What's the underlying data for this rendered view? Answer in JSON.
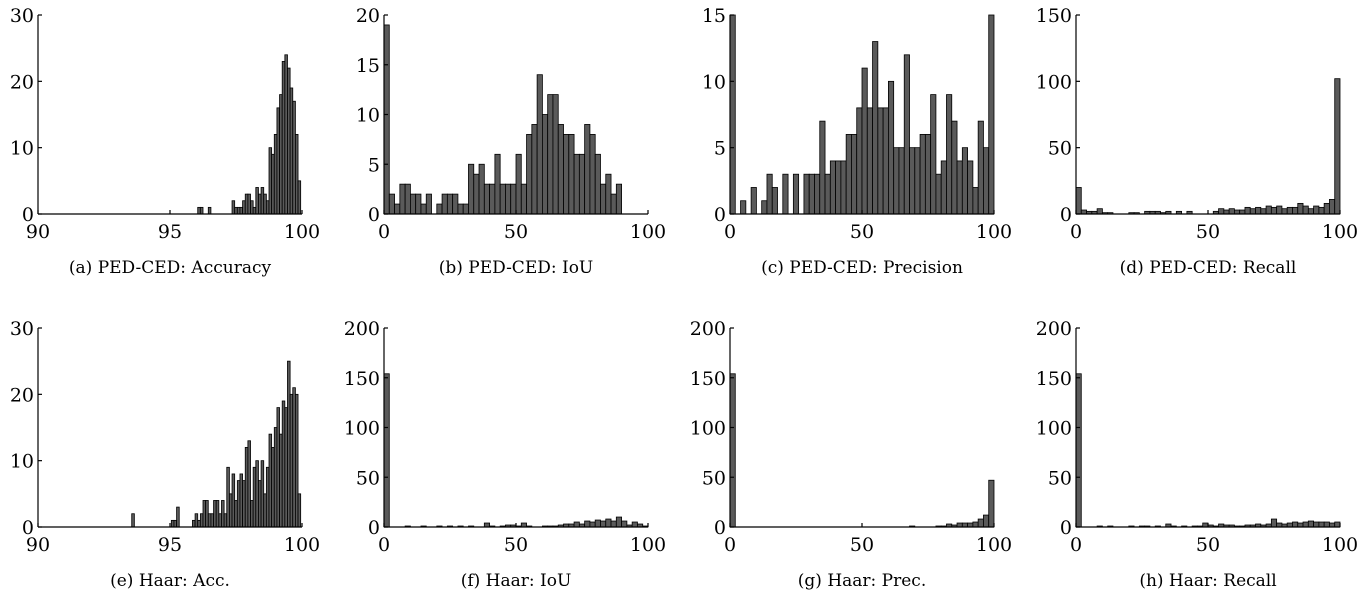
{
  "chart_data": [
    {
      "id": "a",
      "type": "bar",
      "subtype": "histogram",
      "caption": "(a) PED-CED: Accuracy",
      "xlim": [
        90,
        100
      ],
      "ylim": [
        0,
        30
      ],
      "xticks": [
        90,
        95,
        100
      ],
      "yticks": [
        0,
        10,
        20,
        30
      ],
      "bin_width": 0.1,
      "bins": [
        [
          96.1,
          1
        ],
        [
          96.2,
          1
        ],
        [
          96.5,
          1
        ],
        [
          97.4,
          2
        ],
        [
          97.5,
          1
        ],
        [
          97.6,
          1
        ],
        [
          97.7,
          1
        ],
        [
          97.8,
          2
        ],
        [
          97.9,
          3
        ],
        [
          98.0,
          3
        ],
        [
          98.1,
          2
        ],
        [
          98.2,
          1
        ],
        [
          98.3,
          4
        ],
        [
          98.4,
          3
        ],
        [
          98.5,
          4
        ],
        [
          98.6,
          3
        ],
        [
          98.7,
          2
        ],
        [
          98.8,
          10
        ],
        [
          98.9,
          9
        ],
        [
          99.0,
          12
        ],
        [
          99.1,
          16
        ],
        [
          99.2,
          18
        ],
        [
          99.3,
          23
        ],
        [
          99.4,
          24
        ],
        [
          99.5,
          22
        ],
        [
          99.6,
          19
        ],
        [
          99.7,
          17
        ],
        [
          99.8,
          12
        ],
        [
          99.9,
          5
        ]
      ]
    },
    {
      "id": "b",
      "type": "bar",
      "subtype": "histogram",
      "caption": "(b) PED-CED: IoU",
      "xlim": [
        0,
        100
      ],
      "ylim": [
        0,
        20
      ],
      "xticks": [
        0,
        50,
        100
      ],
      "yticks": [
        0,
        5,
        10,
        15,
        20
      ],
      "bin_width": 2,
      "bins": [
        [
          1,
          19
        ],
        [
          3,
          2
        ],
        [
          5,
          1
        ],
        [
          7,
          3
        ],
        [
          9,
          3
        ],
        [
          11,
          2
        ],
        [
          13,
          2
        ],
        [
          15,
          1
        ],
        [
          17,
          2
        ],
        [
          19,
          0
        ],
        [
          21,
          1
        ],
        [
          23,
          2
        ],
        [
          25,
          2
        ],
        [
          27,
          2
        ],
        [
          29,
          1
        ],
        [
          31,
          1
        ],
        [
          33,
          5
        ],
        [
          35,
          4
        ],
        [
          37,
          5
        ],
        [
          39,
          3
        ],
        [
          41,
          3
        ],
        [
          43,
          6
        ],
        [
          45,
          3
        ],
        [
          47,
          3
        ],
        [
          49,
          3
        ],
        [
          51,
          6
        ],
        [
          53,
          3
        ],
        [
          55,
          8
        ],
        [
          57,
          9
        ],
        [
          59,
          14
        ],
        [
          61,
          10
        ],
        [
          63,
          12
        ],
        [
          65,
          12
        ],
        [
          67,
          9
        ],
        [
          69,
          8
        ],
        [
          71,
          8
        ],
        [
          73,
          6
        ],
        [
          75,
          6
        ],
        [
          77,
          9
        ],
        [
          79,
          8
        ],
        [
          81,
          6
        ],
        [
          83,
          3
        ],
        [
          85,
          4
        ],
        [
          87,
          2
        ],
        [
          89,
          3
        ]
      ]
    },
    {
      "id": "c",
      "type": "bar",
      "subtype": "histogram",
      "caption": "(c) PED-CED: Precision",
      "xlim": [
        0,
        100
      ],
      "ylim": [
        0,
        15
      ],
      "xticks": [
        0,
        50,
        100
      ],
      "yticks": [
        0,
        5,
        10,
        15
      ],
      "bin_width": 2,
      "bins": [
        [
          1,
          15
        ],
        [
          5,
          1
        ],
        [
          9,
          2
        ],
        [
          13,
          1
        ],
        [
          15,
          3
        ],
        [
          17,
          2
        ],
        [
          19,
          0
        ],
        [
          21,
          3
        ],
        [
          25,
          3
        ],
        [
          29,
          3
        ],
        [
          31,
          3
        ],
        [
          33,
          3
        ],
        [
          35,
          7
        ],
        [
          37,
          3
        ],
        [
          39,
          4
        ],
        [
          41,
          4
        ],
        [
          43,
          4
        ],
        [
          45,
          6
        ],
        [
          47,
          6
        ],
        [
          49,
          8
        ],
        [
          51,
          11
        ],
        [
          53,
          8
        ],
        [
          55,
          13
        ],
        [
          57,
          8
        ],
        [
          59,
          8
        ],
        [
          61,
          10
        ],
        [
          63,
          5
        ],
        [
          65,
          5
        ],
        [
          67,
          12
        ],
        [
          69,
          5
        ],
        [
          71,
          5
        ],
        [
          73,
          6
        ],
        [
          75,
          6
        ],
        [
          77,
          9
        ],
        [
          79,
          3
        ],
        [
          81,
          4
        ],
        [
          83,
          9
        ],
        [
          85,
          7
        ],
        [
          87,
          4
        ],
        [
          89,
          5
        ],
        [
          91,
          4
        ],
        [
          93,
          2
        ],
        [
          95,
          7
        ],
        [
          97,
          5
        ],
        [
          99,
          15
        ]
      ]
    },
    {
      "id": "d",
      "type": "bar",
      "subtype": "histogram",
      "caption": "(d) PED-CED: Recall",
      "xlim": [
        0,
        100
      ],
      "ylim": [
        0,
        150
      ],
      "xticks": [
        0,
        50,
        100
      ],
      "yticks": [
        0,
        50,
        100,
        150
      ],
      "bin_width": 2,
      "bins": [
        [
          1,
          20
        ],
        [
          3,
          3
        ],
        [
          5,
          2
        ],
        [
          7,
          2
        ],
        [
          9,
          4
        ],
        [
          11,
          1
        ],
        [
          13,
          1
        ],
        [
          21,
          1
        ],
        [
          23,
          1
        ],
        [
          27,
          2
        ],
        [
          29,
          2
        ],
        [
          31,
          2
        ],
        [
          33,
          1
        ],
        [
          35,
          2
        ],
        [
          39,
          2
        ],
        [
          43,
          2
        ],
        [
          53,
          2
        ],
        [
          55,
          4
        ],
        [
          57,
          3
        ],
        [
          59,
          4
        ],
        [
          61,
          3
        ],
        [
          63,
          3
        ],
        [
          65,
          5
        ],
        [
          67,
          4
        ],
        [
          69,
          5
        ],
        [
          71,
          4
        ],
        [
          73,
          6
        ],
        [
          75,
          5
        ],
        [
          77,
          6
        ],
        [
          79,
          4
        ],
        [
          81,
          5
        ],
        [
          83,
          5
        ],
        [
          85,
          8
        ],
        [
          87,
          6
        ],
        [
          89,
          4
        ],
        [
          91,
          6
        ],
        [
          93,
          5
        ],
        [
          95,
          8
        ],
        [
          97,
          11
        ],
        [
          99,
          102
        ]
      ]
    },
    {
      "id": "e",
      "type": "bar",
      "subtype": "histogram",
      "caption": "(e) Haar: Acc.",
      "xlim": [
        90,
        100
      ],
      "ylim": [
        0,
        30
      ],
      "xticks": [
        90,
        95,
        100
      ],
      "yticks": [
        0,
        10,
        20,
        30
      ],
      "bin_width": 0.1,
      "bins": [
        [
          93.6,
          2
        ],
        [
          95.1,
          1
        ],
        [
          95.2,
          1
        ],
        [
          95.3,
          3
        ],
        [
          95.9,
          1
        ],
        [
          96.0,
          2
        ],
        [
          96.1,
          1
        ],
        [
          96.2,
          2
        ],
        [
          96.3,
          4
        ],
        [
          96.4,
          4
        ],
        [
          96.5,
          2
        ],
        [
          96.6,
          2
        ],
        [
          96.7,
          4
        ],
        [
          96.8,
          4
        ],
        [
          96.9,
          2
        ],
        [
          97.0,
          4
        ],
        [
          97.1,
          2
        ],
        [
          97.2,
          9
        ],
        [
          97.3,
          5
        ],
        [
          97.4,
          8
        ],
        [
          97.5,
          4
        ],
        [
          97.6,
          7
        ],
        [
          97.7,
          8
        ],
        [
          97.8,
          7
        ],
        [
          97.9,
          12
        ],
        [
          98.0,
          13
        ],
        [
          98.1,
          4
        ],
        [
          98.2,
          9
        ],
        [
          98.3,
          10
        ],
        [
          98.4,
          7
        ],
        [
          98.5,
          10
        ],
        [
          98.6,
          5
        ],
        [
          98.7,
          9
        ],
        [
          98.8,
          14
        ],
        [
          98.9,
          12
        ],
        [
          99.0,
          15
        ],
        [
          99.1,
          18
        ],
        [
          99.2,
          14
        ],
        [
          99.3,
          19
        ],
        [
          99.4,
          18
        ],
        [
          99.5,
          25
        ],
        [
          99.6,
          20
        ],
        [
          99.7,
          21
        ],
        [
          99.8,
          20
        ],
        [
          99.9,
          5
        ]
      ]
    },
    {
      "id": "f",
      "type": "bar",
      "subtype": "histogram",
      "caption": "(f) Haar: IoU",
      "xlim": [
        0,
        100
      ],
      "ylim": [
        0,
        200
      ],
      "xticks": [
        0,
        50,
        100
      ],
      "yticks": [
        0,
        50,
        100,
        150,
        200
      ],
      "bin_width": 2,
      "bins": [
        [
          1,
          154
        ],
        [
          9,
          1
        ],
        [
          15,
          1
        ],
        [
          21,
          1
        ],
        [
          25,
          1
        ],
        [
          29,
          1
        ],
        [
          33,
          1
        ],
        [
          39,
          4
        ],
        [
          41,
          1
        ],
        [
          45,
          1
        ],
        [
          47,
          2
        ],
        [
          49,
          2
        ],
        [
          51,
          1
        ],
        [
          53,
          4
        ],
        [
          55,
          1
        ],
        [
          61,
          1
        ],
        [
          63,
          1
        ],
        [
          65,
          1
        ],
        [
          67,
          2
        ],
        [
          69,
          3
        ],
        [
          71,
          3
        ],
        [
          73,
          5
        ],
        [
          75,
          3
        ],
        [
          77,
          6
        ],
        [
          79,
          5
        ],
        [
          81,
          7
        ],
        [
          83,
          6
        ],
        [
          85,
          8
        ],
        [
          87,
          6
        ],
        [
          89,
          10
        ],
        [
          91,
          6
        ],
        [
          93,
          2
        ],
        [
          95,
          5
        ],
        [
          97,
          3
        ],
        [
          99,
          1
        ]
      ]
    },
    {
      "id": "g",
      "type": "bar",
      "subtype": "histogram",
      "caption": "(g) Haar: Prec.",
      "xlim": [
        0,
        100
      ],
      "ylim": [
        0,
        200
      ],
      "xticks": [
        0,
        50,
        100
      ],
      "yticks": [
        0,
        50,
        100,
        150,
        200
      ],
      "bin_width": 2,
      "bins": [
        [
          1,
          154
        ],
        [
          69,
          1
        ],
        [
          79,
          1
        ],
        [
          81,
          1
        ],
        [
          83,
          3
        ],
        [
          85,
          2
        ],
        [
          87,
          4
        ],
        [
          89,
          4
        ],
        [
          91,
          4
        ],
        [
          93,
          5
        ],
        [
          95,
          8
        ],
        [
          97,
          12
        ],
        [
          99,
          47
        ]
      ]
    },
    {
      "id": "h",
      "type": "bar",
      "subtype": "histogram",
      "caption": "(h) Haar: Recall",
      "xlim": [
        0,
        100
      ],
      "ylim": [
        0,
        200
      ],
      "xticks": [
        0,
        50,
        100
      ],
      "yticks": [
        0,
        50,
        100,
        150,
        200
      ],
      "bin_width": 2,
      "bins": [
        [
          1,
          154
        ],
        [
          9,
          1
        ],
        [
          13,
          1
        ],
        [
          21,
          1
        ],
        [
          25,
          1
        ],
        [
          27,
          1
        ],
        [
          31,
          1
        ],
        [
          35,
          3
        ],
        [
          37,
          1
        ],
        [
          41,
          1
        ],
        [
          45,
          1
        ],
        [
          47,
          1
        ],
        [
          49,
          4
        ],
        [
          51,
          2
        ],
        [
          53,
          1
        ],
        [
          55,
          3
        ],
        [
          57,
          2
        ],
        [
          59,
          2
        ],
        [
          61,
          1
        ],
        [
          63,
          1
        ],
        [
          65,
          2
        ],
        [
          67,
          2
        ],
        [
          69,
          3
        ],
        [
          71,
          2
        ],
        [
          73,
          3
        ],
        [
          75,
          8
        ],
        [
          77,
          4
        ],
        [
          79,
          3
        ],
        [
          81,
          4
        ],
        [
          83,
          5
        ],
        [
          85,
          4
        ],
        [
          87,
          5
        ],
        [
          89,
          6
        ],
        [
          91,
          5
        ],
        [
          93,
          5
        ],
        [
          95,
          5
        ],
        [
          97,
          4
        ],
        [
          99,
          5
        ]
      ]
    }
  ]
}
